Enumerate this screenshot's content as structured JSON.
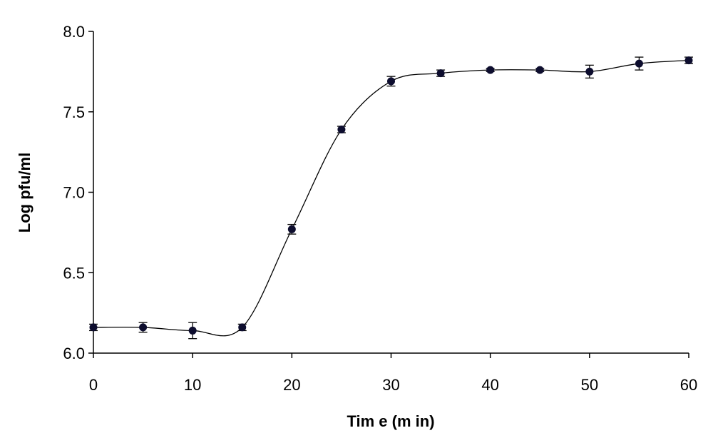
{
  "chart_data": {
    "type": "line",
    "title": "",
    "xlabel": "Tim e (m in)",
    "ylabel": "Log pfu/ml",
    "xlim": [
      0,
      60
    ],
    "ylim": [
      6.0,
      8.0
    ],
    "x_ticks": [
      0,
      10,
      20,
      30,
      40,
      50,
      60
    ],
    "x_tick_labels": [
      "0",
      "10",
      "20",
      "30",
      "40",
      "50",
      "60"
    ],
    "y_ticks": [
      6.0,
      6.5,
      7.0,
      7.5,
      8.0
    ],
    "y_tick_labels": [
      "6.0",
      "6.5",
      "7.0",
      "7.5",
      "8.0"
    ],
    "grid": false,
    "legend": "none",
    "line_style": "smooth",
    "colors": {
      "marker": "#0d0d2e",
      "line": "#000000",
      "axis": "#000000"
    },
    "series": [
      {
        "x": [
          0,
          5,
          10,
          15,
          20,
          25,
          30,
          35,
          40,
          45,
          50,
          55,
          60
        ],
        "y": [
          6.16,
          6.16,
          6.14,
          6.16,
          6.77,
          7.39,
          7.69,
          7.74,
          7.76,
          7.76,
          7.75,
          7.8,
          7.82
        ],
        "error": [
          0.02,
          0.03,
          0.05,
          0.02,
          0.03,
          0.02,
          0.03,
          0.02,
          0.01,
          0.01,
          0.04,
          0.04,
          0.02
        ]
      }
    ]
  }
}
